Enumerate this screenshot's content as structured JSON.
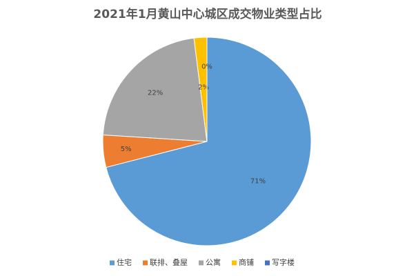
{
  "chart_data": {
    "type": "pie",
    "title": "2021年1月黄山中心城区成交物业类型占比",
    "categories": [
      "住宅",
      "联排、叠屋",
      "公寓",
      "商铺",
      "写字楼"
    ],
    "values": [
      71,
      5,
      22,
      2,
      0
    ],
    "value_labels": [
      "71%",
      "5%",
      "22%",
      "2%",
      "0%"
    ],
    "colors": [
      "#5b9bd5",
      "#ed7d31",
      "#a5a5a5",
      "#ffc000",
      "#4472c4"
    ],
    "legend": "bottom"
  }
}
